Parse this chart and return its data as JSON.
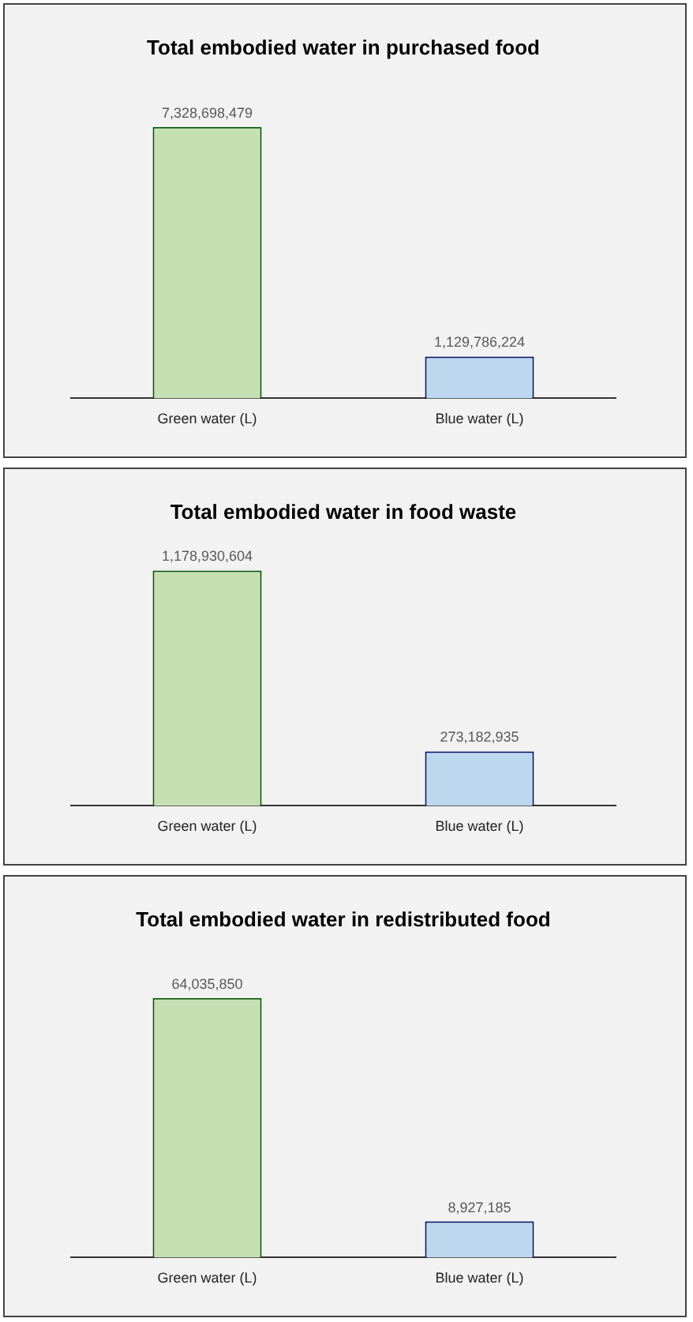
{
  "chart_data": [
    {
      "type": "bar",
      "title": "Total embodied water in purchased food",
      "categories": [
        "Green water (L)",
        "Blue water (L)"
      ],
      "values": [
        7328698479,
        1129786224
      ],
      "value_labels": [
        "7,328,698,479",
        "1,129,786,224"
      ],
      "colors": [
        "#c6e0b4",
        "#bdd7ee"
      ],
      "legend": false,
      "grid": false
    },
    {
      "type": "bar",
      "title": "Total embodied water in food waste",
      "categories": [
        "Green water (L)",
        "Blue water (L)"
      ],
      "values": [
        1178930604,
        273182935
      ],
      "value_labels": [
        "1,178,930,604",
        "273,182,935"
      ],
      "colors": [
        "#c6e0b4",
        "#bdd7ee"
      ],
      "legend": false,
      "grid": false
    },
    {
      "type": "bar",
      "title": "Total embodied water in redistributed food",
      "categories": [
        "Green water (L)",
        "Blue water (L)"
      ],
      "values": [
        64035850,
        8927185
      ],
      "value_labels": [
        "64,035,850",
        "8,927,185"
      ],
      "colors": [
        "#c6e0b4",
        "#bdd7ee"
      ],
      "legend": false,
      "grid": false
    }
  ]
}
